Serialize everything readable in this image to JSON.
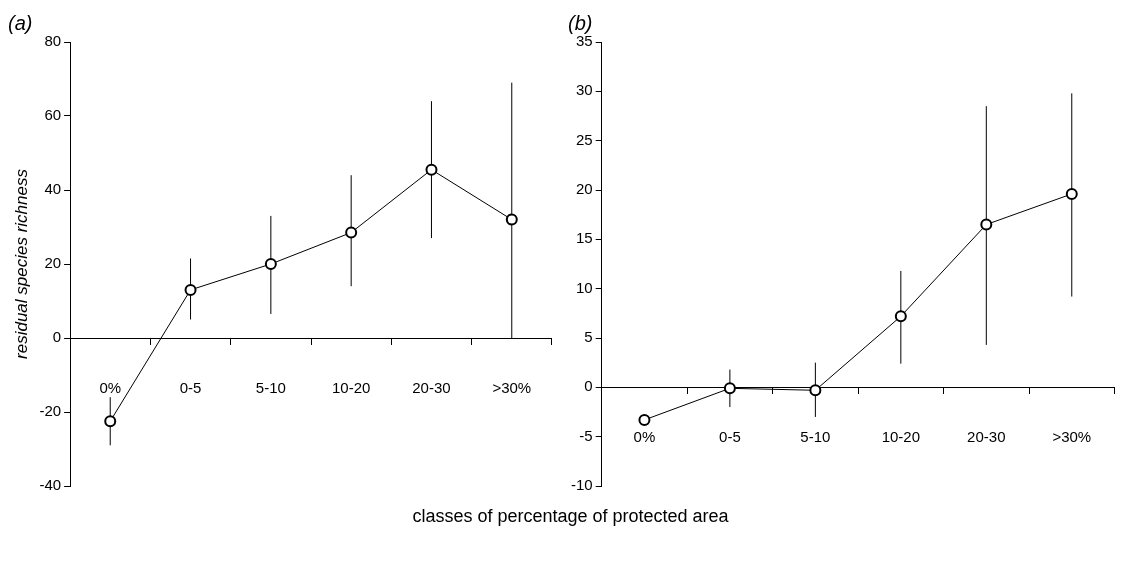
{
  "chart_data": [
    {
      "type": "line",
      "title": "(a)",
      "ylabel": "residual species richness",
      "xlabel": "classes of percentage of protected area",
      "categories": [
        "0%",
        "0-5",
        "5-10",
        "10-20",
        "20-30",
        ">30%"
      ],
      "series": [
        {
          "color": "#000000",
          "values": [
            -22.5,
            13,
            20,
            28.5,
            45.5,
            32
          ],
          "errors": [
            [
              -29,
              -16
            ],
            [
              5,
              21.5
            ],
            [
              6.5,
              33
            ],
            [
              14,
              44
            ],
            [
              27,
              64
            ],
            [
              0,
              69
            ]
          ]
        }
      ],
      "ylim": [
        -40,
        80
      ],
      "yticks": [
        -40,
        -20,
        0,
        20,
        40,
        60,
        80
      ],
      "legend": false,
      "marker": "circle",
      "line_style": "solid"
    },
    {
      "type": "line",
      "title": "(b)",
      "categories": [
        "0%",
        "0-5",
        "5-10",
        "10-20",
        "20-30",
        ">30%"
      ],
      "series": [
        {
          "color": "#000000",
          "values": [
            -3.3,
            -0.1,
            -0.3,
            7.2,
            16.5,
            19.6
          ],
          "errors": [
            null,
            [
              -2,
              1.8
            ],
            [
              -3,
              2.5
            ],
            [
              2.4,
              11.8
            ],
            [
              4.3,
              28.5
            ],
            [
              9.2,
              29.8
            ]
          ]
        }
      ],
      "ylim": [
        -10,
        35
      ],
      "yticks": [
        -10,
        -5,
        0,
        5,
        10,
        15,
        20,
        25,
        30,
        35
      ],
      "legend": false,
      "marker": "circle",
      "line_style": "solid"
    }
  ]
}
